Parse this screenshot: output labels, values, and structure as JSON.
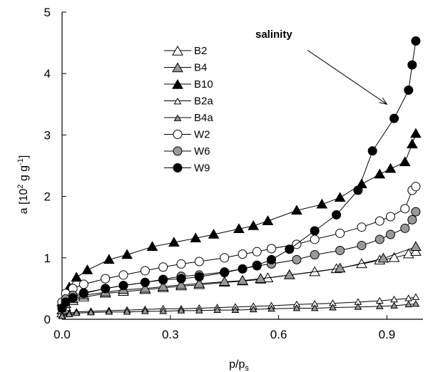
{
  "chart_data": {
    "type": "scatter",
    "xlabel": "p/p",
    "xlabel_sub": "s",
    "ylabel_pre": "a [10",
    "ylabel_sup1": "2",
    "ylabel_mid": " g g",
    "ylabel_sup2": "-1",
    "ylabel_post": "]",
    "xlim": [
      0.0,
      1.0
    ],
    "ylim": [
      0,
      5
    ],
    "xticks": [
      {
        "value": 0.0,
        "label": "0.0"
      },
      {
        "value": 0.3,
        "label": "0.3"
      },
      {
        "value": 0.6,
        "label": "0.6"
      },
      {
        "value": 0.9,
        "label": "0.9"
      }
    ],
    "yticks": [
      {
        "value": 0,
        "label": "0"
      },
      {
        "value": 1,
        "label": "1"
      },
      {
        "value": 2,
        "label": "2"
      },
      {
        "value": 3,
        "label": "3"
      },
      {
        "value": 4,
        "label": "4"
      },
      {
        "value": 5,
        "label": "5"
      }
    ],
    "grid": false,
    "legend_position": "top-left",
    "annotation": {
      "text": "salinity",
      "arrow_from": [
        0.68,
        4.38
      ],
      "arrow_to": [
        0.9,
        3.5
      ]
    },
    "series": [
      {
        "name": "B2",
        "marker": "triangle",
        "size": "large",
        "fill": "#ffffff",
        "x": [
          0.0,
          0.01,
          0.03,
          0.06,
          0.12,
          0.17,
          0.23,
          0.28,
          0.33,
          0.38,
          0.45,
          0.5,
          0.55,
          0.57,
          0.63,
          0.7,
          0.76,
          0.83,
          0.88,
          0.92,
          0.96,
          0.98
        ],
        "y": [
          0.1,
          0.2,
          0.3,
          0.36,
          0.42,
          0.45,
          0.48,
          0.51,
          0.54,
          0.56,
          0.6,
          0.62,
          0.65,
          0.67,
          0.72,
          0.77,
          0.82,
          0.9,
          0.96,
          1.0,
          1.06,
          1.1
        ]
      },
      {
        "name": "B4",
        "marker": "triangle",
        "size": "large",
        "fill": "#999999",
        "x": [
          0.0,
          0.01,
          0.03,
          0.06,
          0.12,
          0.17,
          0.23,
          0.28,
          0.33,
          0.38,
          0.45,
          0.5,
          0.55,
          0.63,
          0.77,
          0.89,
          0.98
        ],
        "y": [
          0.15,
          0.25,
          0.33,
          0.39,
          0.44,
          0.48,
          0.5,
          0.53,
          0.56,
          0.58,
          0.61,
          0.63,
          0.66,
          0.72,
          0.83,
          0.99,
          1.18
        ]
      },
      {
        "name": "B10",
        "marker": "triangle",
        "size": "large",
        "fill": "#000000",
        "x": [
          0.0,
          0.02,
          0.04,
          0.07,
          0.13,
          0.18,
          0.25,
          0.31,
          0.37,
          0.42,
          0.49,
          0.53,
          0.57,
          0.65,
          0.72,
          0.77,
          0.83,
          0.88,
          0.91,
          0.95,
          0.97,
          0.98
        ],
        "y": [
          0.28,
          0.52,
          0.68,
          0.8,
          0.97,
          1.05,
          1.18,
          1.25,
          1.32,
          1.38,
          1.47,
          1.52,
          1.6,
          1.77,
          1.87,
          1.98,
          2.2,
          2.36,
          2.45,
          2.56,
          2.85,
          3.02
        ]
      },
      {
        "name": "B2a",
        "marker": "triangle",
        "size": "small",
        "fill": "#ffffff",
        "x": [
          0.0,
          0.02,
          0.04,
          0.08,
          0.13,
          0.18,
          0.23,
          0.28,
          0.33,
          0.38,
          0.43,
          0.48,
          0.53,
          0.58,
          0.65,
          0.7,
          0.75,
          0.82,
          0.88,
          0.92,
          0.96,
          0.98
        ],
        "y": [
          0.06,
          0.1,
          0.12,
          0.13,
          0.14,
          0.15,
          0.16,
          0.17,
          0.17,
          0.18,
          0.19,
          0.2,
          0.21,
          0.22,
          0.24,
          0.25,
          0.26,
          0.28,
          0.3,
          0.32,
          0.34,
          0.36
        ]
      },
      {
        "name": "B4a",
        "marker": "triangle",
        "size": "small",
        "fill": "#999999",
        "x": [
          0.0,
          0.02,
          0.04,
          0.08,
          0.13,
          0.18,
          0.23,
          0.28,
          0.33,
          0.38,
          0.43,
          0.48,
          0.53,
          0.58,
          0.65,
          0.7,
          0.75,
          0.82,
          0.88,
          0.92,
          0.96,
          0.98
        ],
        "y": [
          0.05,
          0.08,
          0.1,
          0.11,
          0.12,
          0.12,
          0.13,
          0.13,
          0.14,
          0.14,
          0.15,
          0.15,
          0.16,
          0.17,
          0.18,
          0.18,
          0.19,
          0.2,
          0.21,
          0.22,
          0.24,
          0.25
        ]
      },
      {
        "name": "W2",
        "marker": "circle",
        "size": "large",
        "fill": "#ffffff",
        "x": [
          0.0,
          0.01,
          0.03,
          0.06,
          0.12,
          0.17,
          0.23,
          0.28,
          0.33,
          0.38,
          0.45,
          0.5,
          0.54,
          0.58,
          0.65,
          0.7,
          0.77,
          0.83,
          0.88,
          0.91,
          0.95,
          0.97,
          0.98
        ],
        "y": [
          0.28,
          0.42,
          0.5,
          0.57,
          0.66,
          0.72,
          0.79,
          0.85,
          0.9,
          0.94,
          1.0,
          1.06,
          1.1,
          1.15,
          1.22,
          1.3,
          1.4,
          1.5,
          1.6,
          1.67,
          1.8,
          2.1,
          2.16
        ]
      },
      {
        "name": "W6",
        "marker": "circle",
        "size": "large",
        "fill": "#999999",
        "x": [
          0.0,
          0.01,
          0.03,
          0.06,
          0.12,
          0.17,
          0.23,
          0.28,
          0.33,
          0.38,
          0.45,
          0.5,
          0.54,
          0.58,
          0.65,
          0.7,
          0.77,
          0.83,
          0.88,
          0.91,
          0.95,
          0.97,
          0.98
        ],
        "y": [
          0.18,
          0.33,
          0.39,
          0.43,
          0.5,
          0.55,
          0.6,
          0.65,
          0.7,
          0.72,
          0.77,
          0.82,
          0.87,
          0.9,
          0.97,
          1.05,
          1.12,
          1.2,
          1.3,
          1.38,
          1.48,
          1.62,
          1.75
        ]
      },
      {
        "name": "W9",
        "marker": "circle",
        "size": "large",
        "fill": "#000000",
        "x": [
          0.0,
          0.01,
          0.03,
          0.06,
          0.12,
          0.17,
          0.23,
          0.28,
          0.33,
          0.38,
          0.45,
          0.5,
          0.54,
          0.58,
          0.63,
          0.7,
          0.76,
          0.82,
          0.86,
          0.92,
          0.96,
          0.97,
          0.98
        ],
        "y": [
          0.18,
          0.28,
          0.35,
          0.42,
          0.5,
          0.55,
          0.6,
          0.64,
          0.66,
          0.69,
          0.76,
          0.82,
          0.88,
          0.97,
          1.14,
          1.44,
          1.7,
          2.1,
          2.74,
          3.27,
          3.73,
          4.14,
          4.53
        ]
      }
    ]
  }
}
